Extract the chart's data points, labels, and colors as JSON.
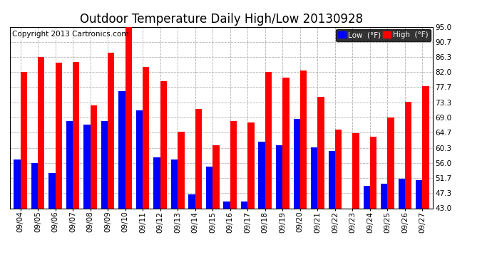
{
  "title": "Outdoor Temperature Daily High/Low 20130928",
  "copyright": "Copyright 2013 Cartronics.com",
  "legend_low": "Low  (°F)",
  "legend_high": "High  (°F)",
  "dates": [
    "09/04",
    "09/05",
    "09/06",
    "09/07",
    "09/08",
    "09/09",
    "09/10",
    "09/11",
    "09/12",
    "09/13",
    "09/14",
    "09/15",
    "09/16",
    "09/17",
    "09/18",
    "09/19",
    "09/20",
    "09/21",
    "09/22",
    "09/23",
    "09/24",
    "09/25",
    "09/26",
    "09/27"
  ],
  "high": [
    82.0,
    86.3,
    84.7,
    85.0,
    72.5,
    87.5,
    95.0,
    83.5,
    79.5,
    65.0,
    71.5,
    61.0,
    68.0,
    67.5,
    82.0,
    80.5,
    82.5,
    75.0,
    65.5,
    64.5,
    63.5,
    69.0,
    73.5,
    78.0
  ],
  "low": [
    57.0,
    56.0,
    53.0,
    68.0,
    67.0,
    68.0,
    76.5,
    71.0,
    57.5,
    57.0,
    47.0,
    55.0,
    45.0,
    45.0,
    62.0,
    61.0,
    68.5,
    60.5,
    59.5,
    43.0,
    49.5,
    50.0,
    51.5,
    51.0
  ],
  "ylim": [
    43.0,
    95.0
  ],
  "yticks": [
    43.0,
    47.3,
    51.7,
    56.0,
    60.3,
    64.7,
    69.0,
    73.3,
    77.7,
    82.0,
    86.3,
    90.7,
    95.0
  ],
  "bar_color_high": "#ff0000",
  "bar_color_low": "#0000ff",
  "bg_color": "#ffffff",
  "grid_color": "#b0b0b0",
  "title_fontsize": 12,
  "copyright_fontsize": 7.5,
  "tick_fontsize": 7.5,
  "bar_width": 0.38,
  "fig_width": 6.9,
  "fig_height": 3.75
}
